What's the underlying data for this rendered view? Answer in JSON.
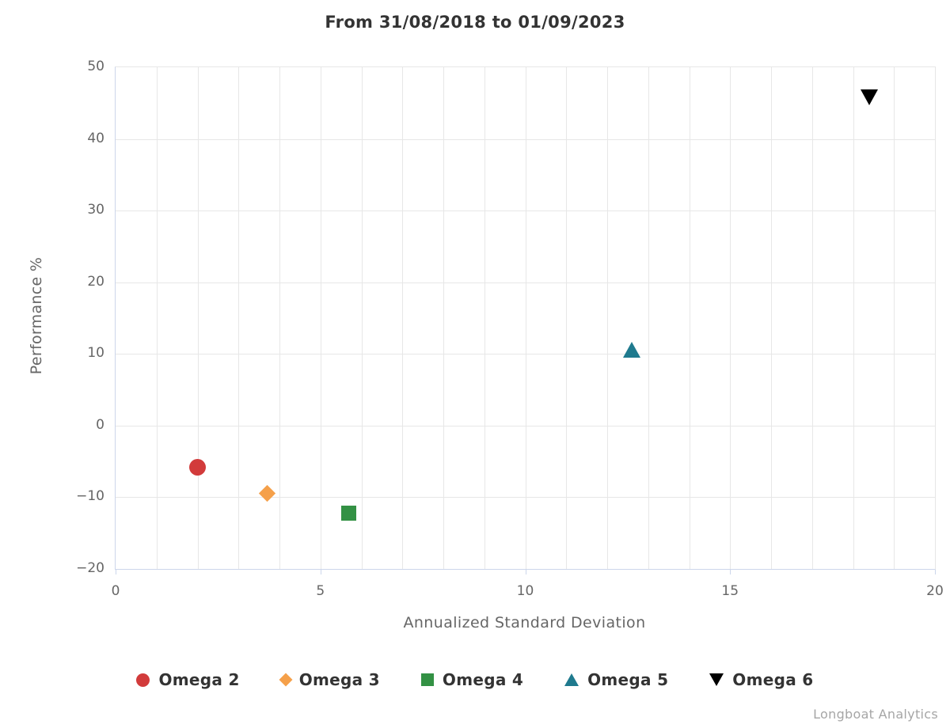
{
  "title": "From 31/08/2018 to 01/09/2023",
  "credits": "Longboat Analytics",
  "chart_data": {
    "type": "scatter",
    "title": "From 31/08/2018 to 01/09/2023",
    "xlabel": "Annualized Standard Deviation",
    "ylabel": "Performance %",
    "xlim": [
      0,
      20
    ],
    "ylim": [
      -20,
      50
    ],
    "x_major_ticks": [
      0,
      5,
      10,
      15,
      20
    ],
    "x_minor_step": 1,
    "y_ticks": [
      50,
      40,
      30,
      20,
      10,
      0,
      -10,
      -20
    ],
    "grid": true,
    "legend_position": "bottom",
    "series": [
      {
        "name": "Omega 2",
        "marker": "circle",
        "color": "#d23b3b",
        "points": [
          {
            "x": 2.0,
            "y": -5.8
          }
        ]
      },
      {
        "name": "Omega 3",
        "marker": "diamond",
        "color": "#f5a04a",
        "points": [
          {
            "x": 3.7,
            "y": -9.5
          }
        ]
      },
      {
        "name": "Omega 4",
        "marker": "square",
        "color": "#339144",
        "points": [
          {
            "x": 5.7,
            "y": -12.2
          }
        ]
      },
      {
        "name": "Omega 5",
        "marker": "triangle-up",
        "color": "#1f7a8e",
        "points": [
          {
            "x": 12.6,
            "y": 10.6
          }
        ]
      },
      {
        "name": "Omega 6",
        "marker": "triangle-down",
        "color": "#000000",
        "points": [
          {
            "x": 18.4,
            "y": 45.8
          }
        ]
      }
    ]
  },
  "colors": {
    "grid": "#e7e7e7",
    "axis_line": "#ccd6eb",
    "tick_label": "#666666",
    "axis_title_text": "#666666",
    "chart_title_text": "#333333",
    "legend_text": "#333333",
    "credits_text": "#a6a6a6"
  }
}
